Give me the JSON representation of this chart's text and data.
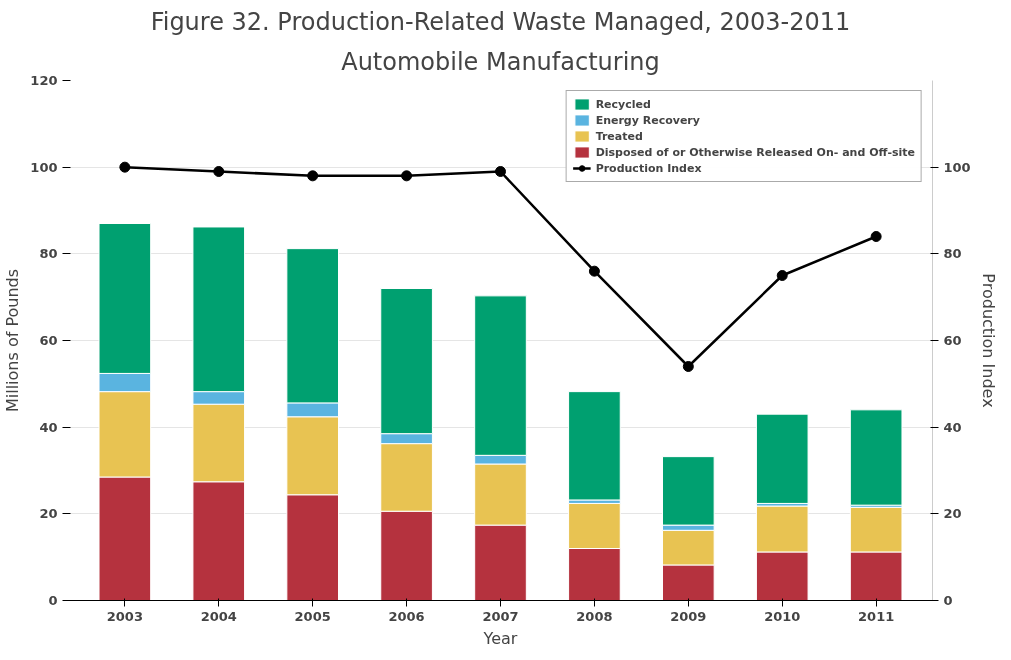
{
  "chart_data": {
    "type": "bar",
    "stacked": true,
    "title": "Figure 32. Production-Related Waste Managed, 2003-2011",
    "subtitle": "Automobile Manufacturing",
    "xlabel": "Year",
    "ylabel": "Millions of Pounds",
    "y2label": "Production Index",
    "categories": [
      "2003",
      "2004",
      "2005",
      "2006",
      "2007",
      "2008",
      "2009",
      "2010",
      "2011"
    ],
    "series": [
      {
        "name": "Disposed of or Otherwise Released On- and Off-site",
        "color": "#b5323e",
        "values": [
          28.5,
          27.4,
          24.4,
          20.6,
          17.4,
          12,
          8.2,
          11.2,
          11.2
        ]
      },
      {
        "name": "Treated",
        "color": "#e8c352",
        "values": [
          19.7,
          17.9,
          18,
          15.6,
          14.1,
          10.4,
          8,
          10.6,
          10.3
        ]
      },
      {
        "name": "Energy Recovery",
        "color": "#5ab4e0",
        "values": [
          4.2,
          2.9,
          3.2,
          2.3,
          2,
          0.8,
          1.2,
          0.6,
          0.5
        ]
      },
      {
        "name": "Recycled",
        "color": "#00a070",
        "values": [
          34.6,
          38,
          35.6,
          33.5,
          36.8,
          25,
          15.8,
          20.6,
          22
        ]
      },
      {
        "name": "Production Index",
        "type": "line",
        "axis": "y2",
        "color": "#000000",
        "marker": "circle",
        "values": [
          100,
          99,
          98,
          98,
          99,
          76,
          54,
          75,
          84
        ]
      }
    ],
    "ylim": [
      0,
      120
    ],
    "yticks": [
      0,
      20,
      40,
      60,
      80,
      100,
      120
    ],
    "y2lim": [
      0,
      120
    ],
    "y2ticks": [
      0,
      20,
      40,
      60,
      80,
      100
    ],
    "grid": "y",
    "legend": "top right"
  }
}
